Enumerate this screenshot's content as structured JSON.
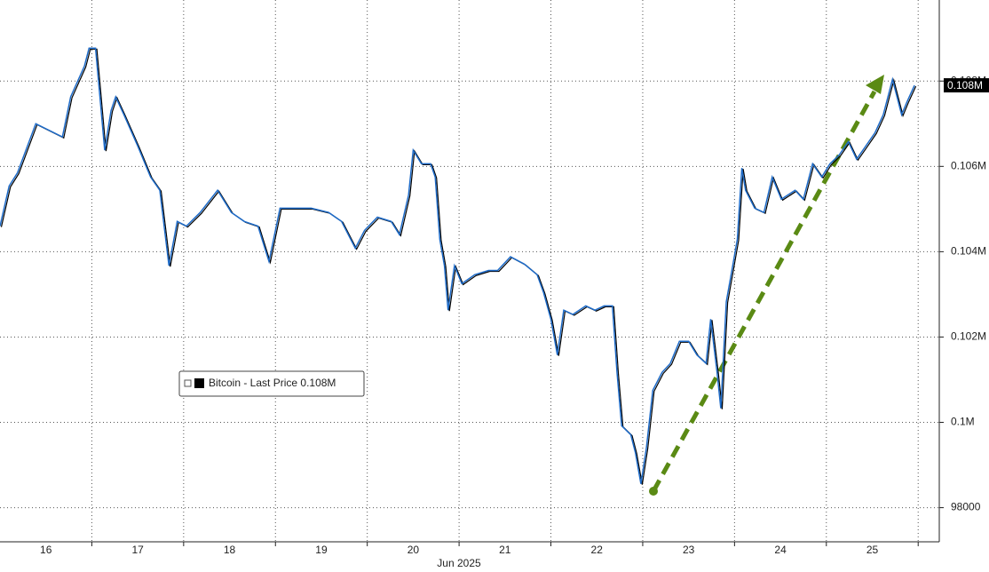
{
  "chart_data": {
    "type": "line",
    "x_label": "Jun 2025",
    "x": [
      15.5,
      15.6,
      15.69,
      15.89,
      16.18,
      16.27,
      16.42,
      16.47,
      16.54,
      16.58,
      16.64,
      16.71,
      16.76,
      16.85,
      17.0,
      17.14,
      17.24,
      17.34,
      17.43,
      17.53,
      17.68,
      17.87,
      18.02,
      18.16,
      18.31,
      18.43,
      18.55,
      18.69,
      18.89,
      19.08,
      19.22,
      19.37,
      19.47,
      19.61,
      19.76,
      19.85,
      19.95,
      20.0,
      20.09,
      20.19,
      20.24,
      20.29,
      20.34,
      20.38,
      20.45,
      20.53,
      20.67,
      20.82,
      20.92,
      21.06,
      21.21,
      21.35,
      21.42,
      21.5,
      21.57,
      21.64,
      21.74,
      21.88,
      21.98,
      22.08,
      22.17,
      22.22,
      22.27,
      22.37,
      22.42,
      22.48,
      22.54,
      22.61,
      22.71,
      22.8,
      22.9,
      23.0,
      23.09,
      23.19,
      23.24,
      23.31,
      23.35,
      23.41,
      23.48,
      23.53,
      23.58,
      23.62,
      23.72,
      23.82,
      23.91,
      24.01,
      24.16,
      24.25,
      24.35,
      24.45,
      24.54,
      24.64,
      24.74,
      24.83,
      24.93,
      25.03,
      25.12,
      25.22,
      25.27,
      25.32,
      25.38,
      25.46
    ],
    "series": [
      {
        "name": "Bitcoin - Last Price",
        "color": "#1e6bc8",
        "last_label": "0.108M",
        "values": [
          104600,
          105540,
          105850,
          107000,
          106690,
          107630,
          108350,
          108770,
          108770,
          107830,
          106380,
          107310,
          107630,
          107210,
          106480,
          105750,
          105440,
          103670,
          104710,
          104600,
          104920,
          105440,
          104920,
          104710,
          104600,
          103770,
          105020,
          105020,
          105020,
          104920,
          104710,
          104080,
          104500,
          104810,
          104710,
          104400,
          105330,
          106380,
          106060,
          106060,
          105750,
          104290,
          103670,
          102630,
          103670,
          103250,
          103460,
          103560,
          103560,
          103880,
          103710,
          103460,
          103040,
          102420,
          101580,
          102630,
          102530,
          102730,
          102630,
          102730,
          102730,
          101170,
          99920,
          99710,
          99290,
          98560,
          99400,
          100750,
          101170,
          101380,
          101900,
          101900,
          101580,
          101380,
          102420,
          101170,
          100330,
          102830,
          103670,
          104290,
          105960,
          105440,
          105020,
          104920,
          105750,
          105230,
          105440,
          105230,
          106060,
          105750,
          106060,
          106270,
          106580,
          106170,
          106480,
          106790,
          107210,
          108040,
          107630,
          107210,
          107520,
          107900
        ]
      }
    ],
    "xlim": [
      15.5,
      25.73
    ],
    "xticks": [
      16,
      17,
      18,
      19,
      20,
      21,
      22,
      23,
      24,
      25
    ],
    "ylim": [
      97200,
      109900
    ],
    "yticks": [
      98000,
      {
        "value": 100000,
        "label": "0.1M"
      },
      {
        "value": 102000,
        "label": "0.102M"
      },
      {
        "value": 104000,
        "label": "0.104M"
      },
      {
        "value": 106000,
        "label": "0.106M"
      },
      {
        "value": 108000,
        "label": "0.108M"
      }
    ],
    "grid": true
  }
}
